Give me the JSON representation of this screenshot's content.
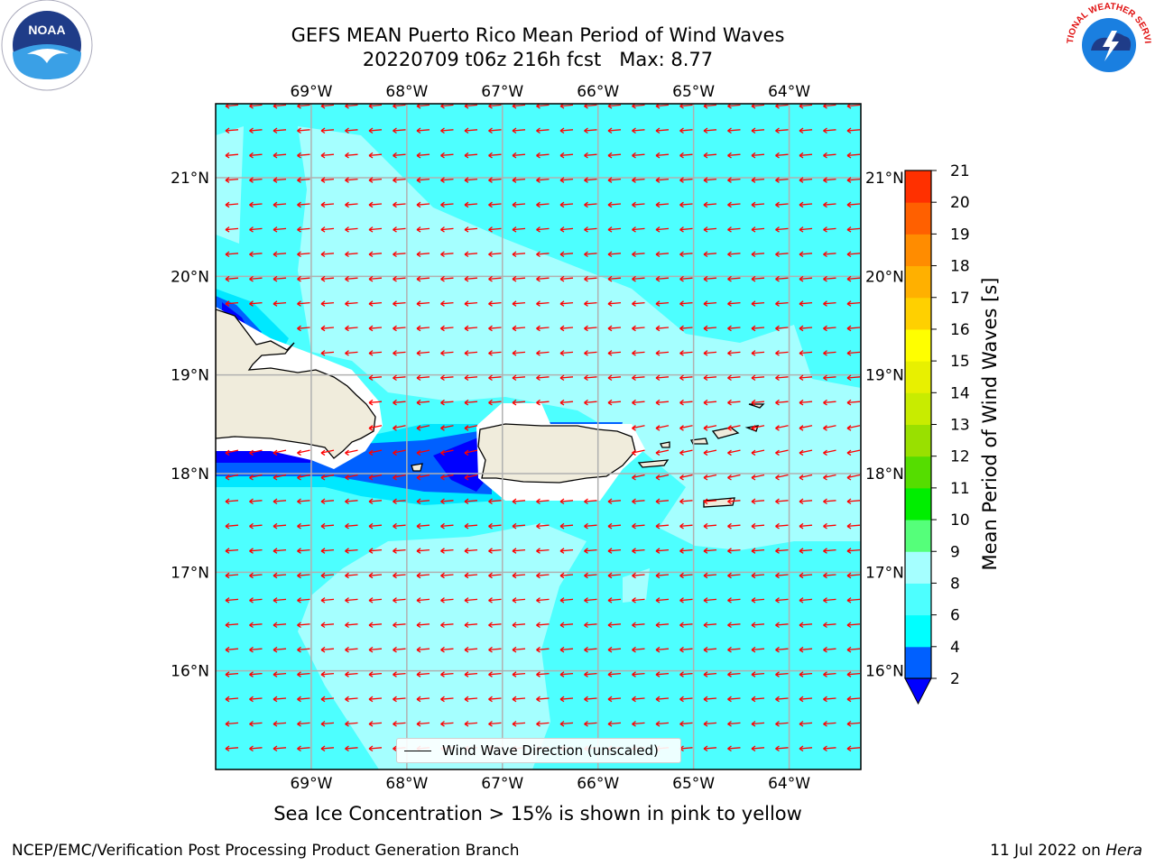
{
  "title": {
    "line1": "GEFS MEAN Puerto Rico Mean Period of Wind Waves",
    "line2": "20220709 t06z 216h fcst   Max: 8.77"
  },
  "map": {
    "lon_range": [
      -70.0,
      -63.25
    ],
    "lat_range": [
      15.0,
      21.75
    ],
    "lon_ticks": [
      {
        "value": -69,
        "label": "69°W"
      },
      {
        "value": -68,
        "label": "68°W"
      },
      {
        "value": -67,
        "label": "67°W"
      },
      {
        "value": -66,
        "label": "66°W"
      },
      {
        "value": -65,
        "label": "65°W"
      },
      {
        "value": -64,
        "label": "64°W"
      }
    ],
    "lat_ticks": [
      {
        "value": 21,
        "label": "21°N"
      },
      {
        "value": 20,
        "label": "20°N"
      },
      {
        "value": 19,
        "label": "19°N"
      },
      {
        "value": 18,
        "label": "18°N"
      },
      {
        "value": 17,
        "label": "17°N"
      },
      {
        "value": 16,
        "label": "16°N"
      }
    ],
    "gridlines": true,
    "ocean_color": "#4dffff",
    "light_color": "#a5ffff",
    "land_color": "#f0ecdc",
    "arrow_color": "#ff0000",
    "arrow_direction": "westward"
  },
  "legend": {
    "label": "Wind Wave Direction (unscaled)"
  },
  "colorbar": {
    "label": "Mean Period of Wind Waves [s]",
    "levels": [
      "2",
      "4",
      "6",
      "8",
      "9",
      "10",
      "11",
      "12",
      "13",
      "14",
      "15",
      "16",
      "17",
      "18",
      "19",
      "20",
      "21"
    ],
    "colors": [
      "#0060ff",
      "#00ffff",
      "#4dffff",
      "#a5ffff",
      "#55ff7a",
      "#00ee00",
      "#55dd00",
      "#99e000",
      "#c8ec00",
      "#e8f000",
      "#ffff00",
      "#ffd000",
      "#ffb000",
      "#ff8c00",
      "#ff6000",
      "#ff3000"
    ],
    "under_color": "#0000ff"
  },
  "subtitle": "Sea Ice Concentration > 15% is shown in pink to yellow",
  "footer": {
    "left": "NCEP/EMC/Verification Post Processing Product Generation Branch",
    "right_date": "11 Jul 2022 on ",
    "right_host": "Hera"
  },
  "logos": {
    "noaa_text": "NOAA",
    "nws_text": "NATIONAL WEATHER SERVICE"
  }
}
